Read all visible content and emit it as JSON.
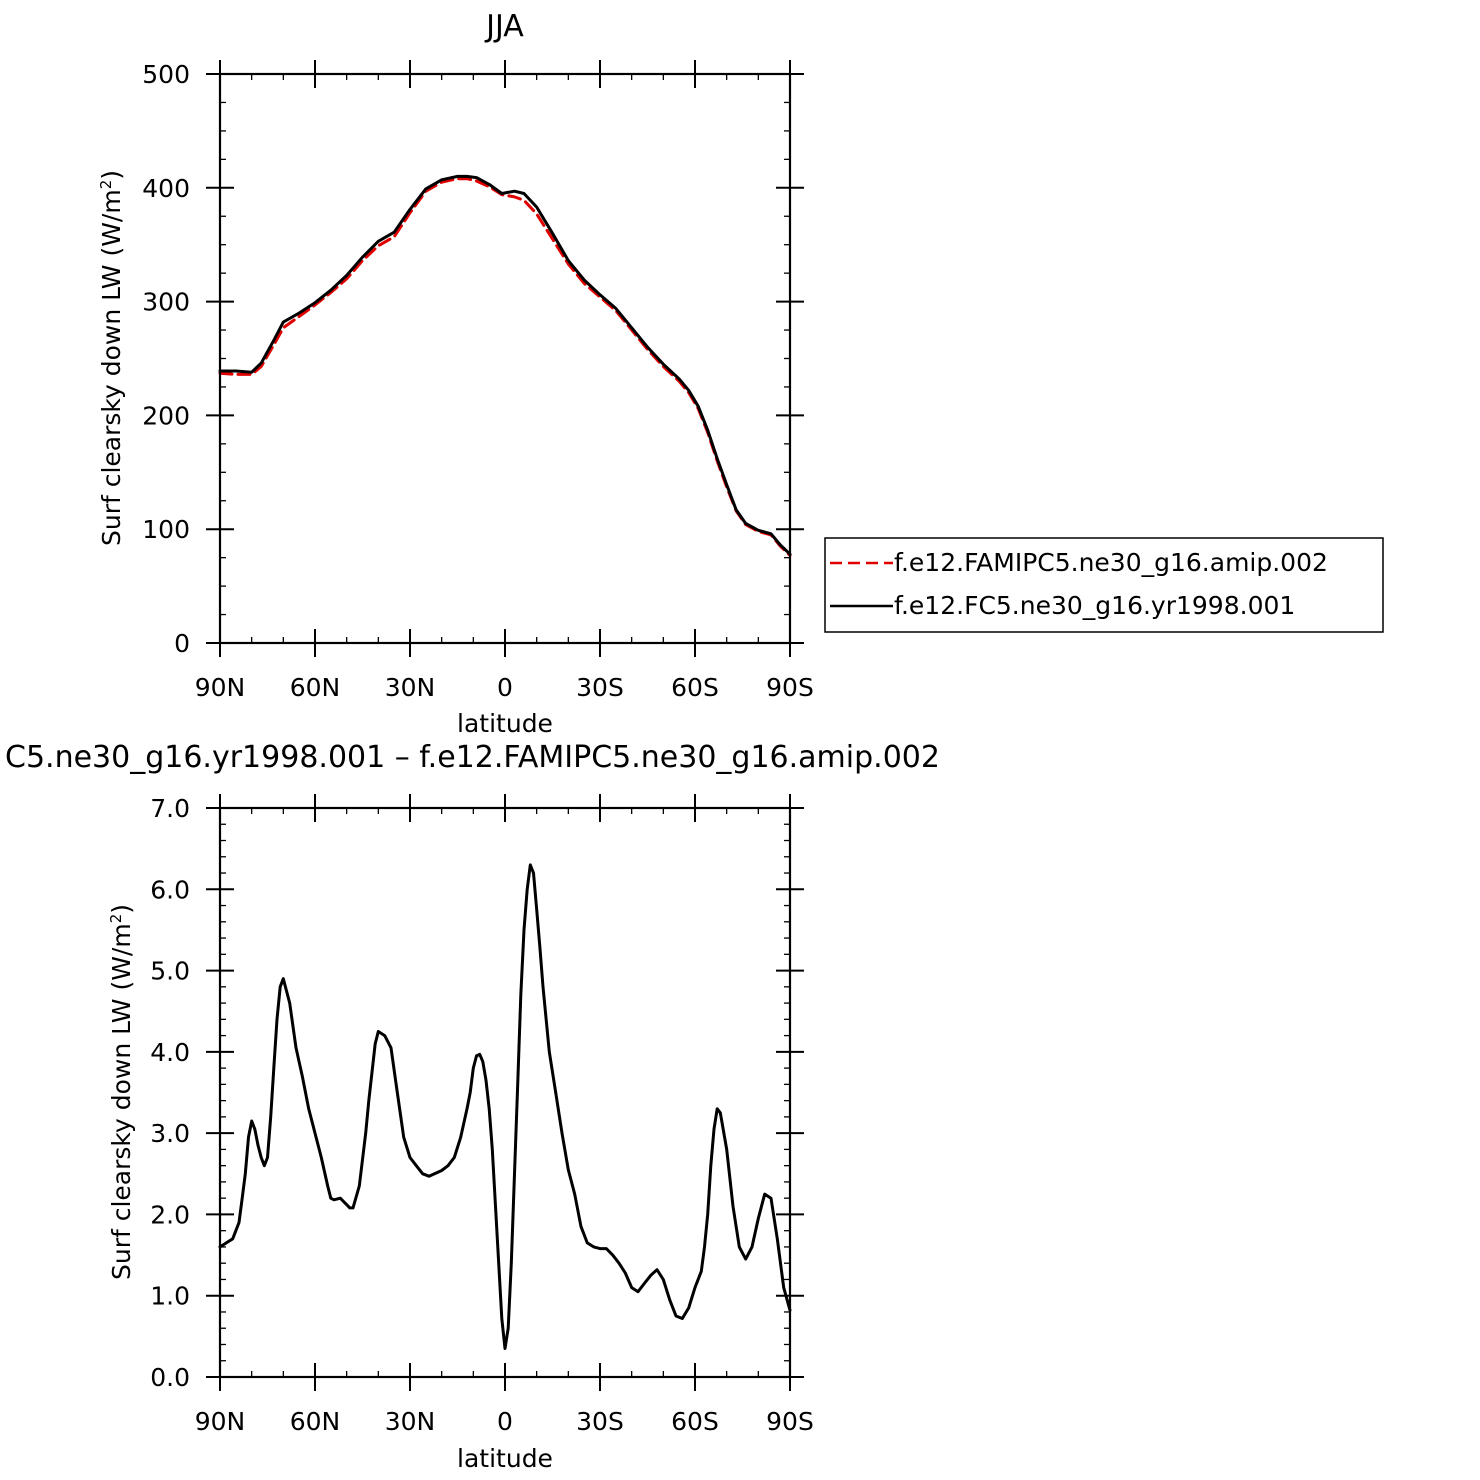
{
  "chart_data": [
    {
      "type": "line",
      "title": "JJA",
      "xlabel": "latitude",
      "ylabel": "Surf clearsky down LW (W/m",
      "ylabel_sup": "2",
      "ylabel_end": ")",
      "xlim": [
        90,
        -90
      ],
      "ylim": [
        0,
        500
      ],
      "x_ticks": [
        {
          "value": 90,
          "label": "90N"
        },
        {
          "value": 60,
          "label": "60N"
        },
        {
          "value": 30,
          "label": "30N"
        },
        {
          "value": 0,
          "label": "0"
        },
        {
          "value": -30,
          "label": "30S"
        },
        {
          "value": -60,
          "label": "60S"
        },
        {
          "value": -90,
          "label": "90S"
        }
      ],
      "y_ticks": [
        {
          "value": 0,
          "label": "0"
        },
        {
          "value": 100,
          "label": "100"
        },
        {
          "value": 200,
          "label": "200"
        },
        {
          "value": 300,
          "label": "300"
        },
        {
          "value": 400,
          "label": "400"
        },
        {
          "value": 500,
          "label": "500"
        }
      ],
      "legend_position": "right",
      "series": [
        {
          "name": "f.e12.FAMIPC5.ne30_g16.amip.002",
          "color": "#e00000",
          "dash": "dashed",
          "x": [
            90,
            85,
            80,
            77,
            73,
            70,
            65,
            60,
            55,
            50,
            45,
            40,
            35,
            30,
            25,
            20,
            15,
            12,
            9,
            5,
            1,
            -3,
            -6,
            -10,
            -15,
            -20,
            -25,
            -30,
            -35,
            -40,
            -45,
            -50,
            -55,
            -58,
            -61,
            -64,
            -67,
            -70,
            -73,
            -76,
            -80,
            -84,
            -87,
            -90
          ],
          "y": [
            237,
            236,
            236,
            243,
            262,
            277,
            287,
            297,
            308,
            320,
            336,
            349,
            357,
            378,
            397,
            405,
            408,
            408,
            406,
            401,
            394,
            392,
            389,
            377,
            355,
            333,
            316,
            304,
            292,
            275,
            258,
            243,
            230,
            220,
            206,
            185,
            160,
            137,
            116,
            104,
            98,
            95,
            85,
            77
          ]
        },
        {
          "name": "f.e12.FC5.ne30_g16.yr1998.001",
          "color": "#000000",
          "dash": "solid",
          "x": [
            90,
            85,
            80,
            77,
            73,
            70,
            65,
            60,
            55,
            50,
            45,
            40,
            35,
            30,
            25,
            20,
            15,
            12,
            9,
            5,
            1,
            -3,
            -6,
            -10,
            -15,
            -20,
            -25,
            -30,
            -35,
            -40,
            -45,
            -50,
            -55,
            -58,
            -61,
            -64,
            -67,
            -70,
            -73,
            -76,
            -80,
            -84,
            -87,
            -90
          ],
          "y": [
            239,
            239,
            238,
            246,
            266,
            282,
            290,
            299,
            310,
            323,
            339,
            353,
            361,
            381,
            399,
            407,
            410,
            410,
            409,
            403,
            395,
            397,
            395,
            383,
            360,
            336,
            319,
            306,
            294,
            277,
            260,
            245,
            232,
            222,
            208,
            187,
            162,
            139,
            117,
            105,
            99,
            96,
            86,
            78
          ]
        }
      ]
    },
    {
      "type": "line",
      "title": "C5.ne30_g16.yr1998.001 – f.e12.FAMIPC5.ne30_g16.amip.002",
      "xlabel": "latitude",
      "ylabel": "Surf clearsky down LW (W/m",
      "ylabel_sup": "2",
      "ylabel_end": ")",
      "xlim": [
        90,
        -90
      ],
      "ylim": [
        0,
        7
      ],
      "x_ticks": [
        {
          "value": 90,
          "label": "90N"
        },
        {
          "value": 60,
          "label": "60N"
        },
        {
          "value": 30,
          "label": "30N"
        },
        {
          "value": 0,
          "label": "0"
        },
        {
          "value": -30,
          "label": "30S"
        },
        {
          "value": -60,
          "label": "60S"
        },
        {
          "value": -90,
          "label": "90S"
        }
      ],
      "y_ticks": [
        {
          "value": 0,
          "label": "0.0"
        },
        {
          "value": 1,
          "label": "1.0"
        },
        {
          "value": 2,
          "label": "2.0"
        },
        {
          "value": 3,
          "label": "3.0"
        },
        {
          "value": 4,
          "label": "4.0"
        },
        {
          "value": 5,
          "label": "5.0"
        },
        {
          "value": 6,
          "label": "6.0"
        },
        {
          "value": 7,
          "label": "7.0"
        }
      ],
      "series": [
        {
          "color": "#000000",
          "dash": "solid",
          "x": [
            90,
            88,
            86,
            84,
            83,
            82,
            81,
            80,
            79,
            78,
            77,
            76,
            75,
            74,
            73,
            72,
            71,
            70,
            68,
            66,
            64,
            62,
            60,
            58,
            56,
            55,
            54,
            52,
            50,
            49,
            48,
            46,
            44,
            43,
            42,
            41,
            40,
            38,
            36,
            34,
            32,
            30,
            28,
            26,
            24,
            20,
            18,
            16,
            14,
            12,
            11,
            10,
            9,
            8,
            7,
            6,
            5,
            4,
            3,
            2,
            1,
            0,
            -1,
            -2,
            -3,
            -4,
            -5,
            -6,
            -7,
            -8,
            -9,
            -10,
            -11,
            -12,
            -14,
            -16,
            -18,
            -20,
            -22,
            -24,
            -26,
            -28,
            -30,
            -32,
            -34,
            -36,
            -38,
            -40,
            -42,
            -44,
            -46,
            -48,
            -50,
            -52,
            -54,
            -56,
            -58,
            -60,
            -62,
            -63,
            -64,
            -65,
            -66,
            -67,
            -68,
            -70,
            -72,
            -74,
            -76,
            -78,
            -80,
            -82,
            -84,
            -86,
            -88,
            -90
          ],
          "y": [
            1.6,
            1.65,
            1.7,
            1.9,
            2.2,
            2.5,
            2.95,
            3.15,
            3.05,
            2.85,
            2.7,
            2.6,
            2.7,
            3.2,
            3.8,
            4.4,
            4.8,
            4.9,
            4.6,
            4.05,
            3.7,
            3.3,
            3.0,
            2.7,
            2.35,
            2.2,
            2.18,
            2.2,
            2.12,
            2.08,
            2.08,
            2.35,
            3.0,
            3.4,
            3.75,
            4.1,
            4.25,
            4.2,
            4.05,
            3.5,
            2.95,
            2.7,
            2.6,
            2.5,
            2.47,
            2.54,
            2.6,
            2.7,
            2.95,
            3.3,
            3.5,
            3.8,
            3.95,
            3.97,
            3.88,
            3.65,
            3.3,
            2.8,
            2.1,
            1.4,
            0.72,
            0.35,
            0.6,
            1.4,
            2.5,
            3.6,
            4.7,
            5.5,
            6.0,
            6.3,
            6.2,
            5.75,
            5.3,
            4.8,
            4.0,
            3.5,
            3.0,
            2.55,
            2.25,
            1.85,
            1.65,
            1.6,
            1.58,
            1.58,
            1.5,
            1.4,
            1.28,
            1.1,
            1.05,
            1.15,
            1.25,
            1.32,
            1.2,
            0.95,
            0.75,
            0.72,
            0.85,
            1.1,
            1.3,
            1.6,
            2.0,
            2.6,
            3.05,
            3.3,
            3.25,
            2.8,
            2.1,
            1.6,
            1.45,
            1.6,
            1.95,
            2.25,
            2.2,
            1.7,
            1.1,
            0.82
          ]
        }
      ]
    }
  ]
}
